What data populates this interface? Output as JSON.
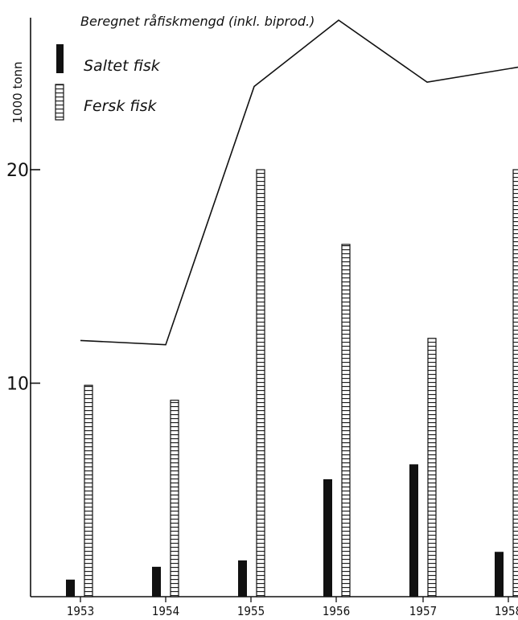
{
  "chart_data": {
    "type": "bar",
    "categories": [
      "1953",
      "1954",
      "1955",
      "1956",
      "1957",
      "1958"
    ],
    "series": [
      {
        "name": "Saltet fisk",
        "kind": "bar",
        "pattern": "solid",
        "color": "#111111",
        "values": [
          0.8,
          1.4,
          1.7,
          5.5,
          6.2,
          2.1
        ]
      },
      {
        "name": "Fersk fisk",
        "kind": "bar",
        "pattern": "hatched",
        "color": "#111111",
        "values": [
          9.9,
          9.2,
          20.0,
          16.5,
          12.1,
          20.0
        ]
      },
      {
        "name": "Beregnet råfiskmengd (inkl. biprod.)",
        "kind": "line",
        "color": "#111111",
        "values": [
          12.0,
          11.8,
          23.9,
          27.0,
          24.1,
          24.8
        ]
      }
    ],
    "ylabel": "1000 tonn",
    "xlabel": "",
    "yticks": [
      10,
      20
    ],
    "ylim": [
      0,
      28.5
    ],
    "grid": false,
    "legend": "top-left"
  }
}
